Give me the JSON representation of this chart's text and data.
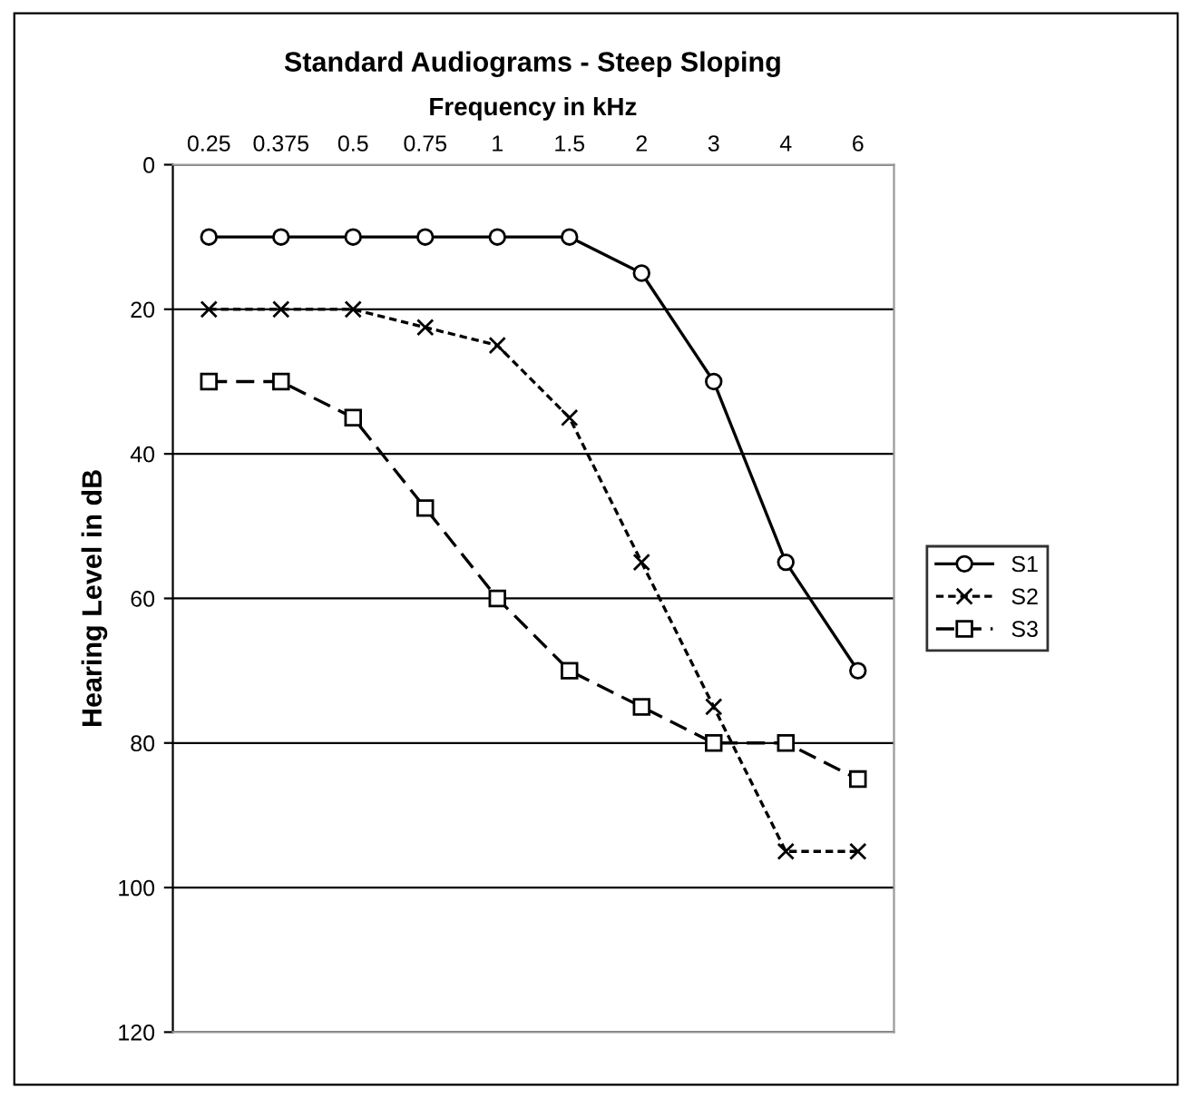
{
  "chart_data": {
    "type": "line",
    "title": "Standard Audiograms - Steep Sloping",
    "xlabel": "Frequency in kHz",
    "ylabel": "Hearing Level in dB",
    "categories": [
      "0.25",
      "0.375",
      "0.5",
      "0.75",
      "1",
      "1.5",
      "2",
      "3",
      "4",
      "6"
    ],
    "series": [
      {
        "name": "S1",
        "color": "#000000",
        "marker": "circle",
        "line_style": "solid",
        "values": [
          10,
          10,
          10,
          10,
          10,
          10,
          15,
          30,
          55,
          70
        ]
      },
      {
        "name": "S2",
        "color": "#000000",
        "marker": "cross",
        "line_style": "dotted",
        "values": [
          20,
          20,
          20,
          22.5,
          25,
          35,
          55,
          75,
          95,
          95
        ]
      },
      {
        "name": "S3",
        "color": "#000000",
        "marker": "square",
        "line_style": "dashed",
        "values": [
          30,
          30,
          35,
          47.5,
          60,
          70,
          75,
          80,
          80,
          85
        ]
      }
    ],
    "ylim": [
      120,
      0
    ],
    "yticks": [
      0,
      20,
      40,
      60,
      80,
      100,
      120
    ],
    "grid": "y",
    "legend": "right"
  }
}
